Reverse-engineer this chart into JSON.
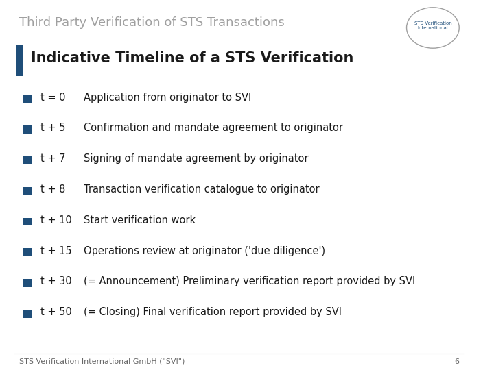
{
  "title": "Third Party Verification of STS Transactions",
  "subtitle": "Indicative Timeline of a STS Verification",
  "footer": "STS Verification International GmbH (\"SVI\")",
  "page_number": "6",
  "title_color": "#a0a0a0",
  "subtitle_color": "#1a1a1a",
  "accent_bar_color": "#1f4e79",
  "bullet_color": "#1f4e79",
  "background_color": "#ffffff",
  "bullet_items": [
    {
      "time": "t = 0",
      "desc": "Application from originator to SVI"
    },
    {
      "time": "t + 5",
      "desc": "Confirmation and mandate agreement to originator"
    },
    {
      "time": "t + 7",
      "desc": "Signing of mandate agreement by originator"
    },
    {
      "time": "t + 8",
      "desc": "Transaction verification catalogue to originator"
    },
    {
      "time": "t + 10",
      "desc": "Start verification work"
    },
    {
      "time": "t + 15",
      "desc": "Operations review at originator ('due diligence')"
    },
    {
      "time": "t + 30",
      "desc": "(= Announcement) Preliminary verification report provided by SVI"
    },
    {
      "time": "t + 50",
      "desc": "(= Closing) Final verification report provided by SVI"
    }
  ],
  "title_fontsize": 13,
  "subtitle_fontsize": 15,
  "bullet_fontsize": 10.5,
  "footer_fontsize": 8
}
